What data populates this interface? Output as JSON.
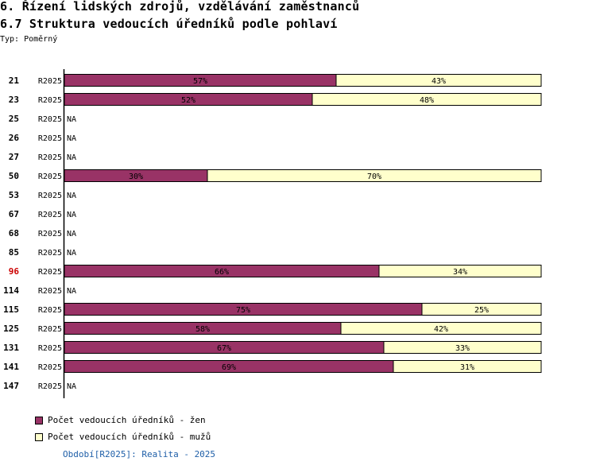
{
  "header": {
    "title": "6. Řízení lidských zdrojů, vzdělávání zaměstnanců",
    "subtitle": "6.7 Struktura vedoucích úředníků podle pohlaví",
    "type_label": "Typ: Poměrný"
  },
  "colors": {
    "women": "#993366",
    "men": "#ffffcc",
    "highlight_label": "#cc0000",
    "axis": "#000000"
  },
  "chart_data": {
    "type": "bar",
    "orientation": "horizontal",
    "stacked": "percent",
    "categories": [
      "21",
      "23",
      "25",
      "26",
      "27",
      "50",
      "53",
      "67",
      "68",
      "85",
      "96",
      "114",
      "115",
      "125",
      "131",
      "141",
      "147"
    ],
    "period_labels": [
      "R2025",
      "R2025",
      "R2025",
      "R2025",
      "R2025",
      "R2025",
      "R2025",
      "R2025",
      "R2025",
      "R2025",
      "R2025",
      "R2025",
      "R2025",
      "R2025",
      "R2025",
      "R2025",
      "R2025"
    ],
    "highlighted_category": "96",
    "na_label": "NA",
    "series": [
      {
        "name": "Počet vedoucích úředníků - žen",
        "values": [
          57,
          52,
          null,
          null,
          null,
          30,
          null,
          null,
          null,
          null,
          66,
          null,
          75,
          58,
          67,
          69,
          null
        ]
      },
      {
        "name": "Počet vedoucích úředníků - mužů",
        "values": [
          43,
          48,
          null,
          null,
          null,
          70,
          null,
          null,
          null,
          null,
          34,
          null,
          25,
          42,
          33,
          31,
          null
        ]
      }
    ],
    "xlim": [
      0,
      100
    ],
    "value_suffix": "%",
    "legend_position": "bottom-left"
  },
  "footer": {
    "period_note": "Období[R2025]: Realita - 2025"
  }
}
